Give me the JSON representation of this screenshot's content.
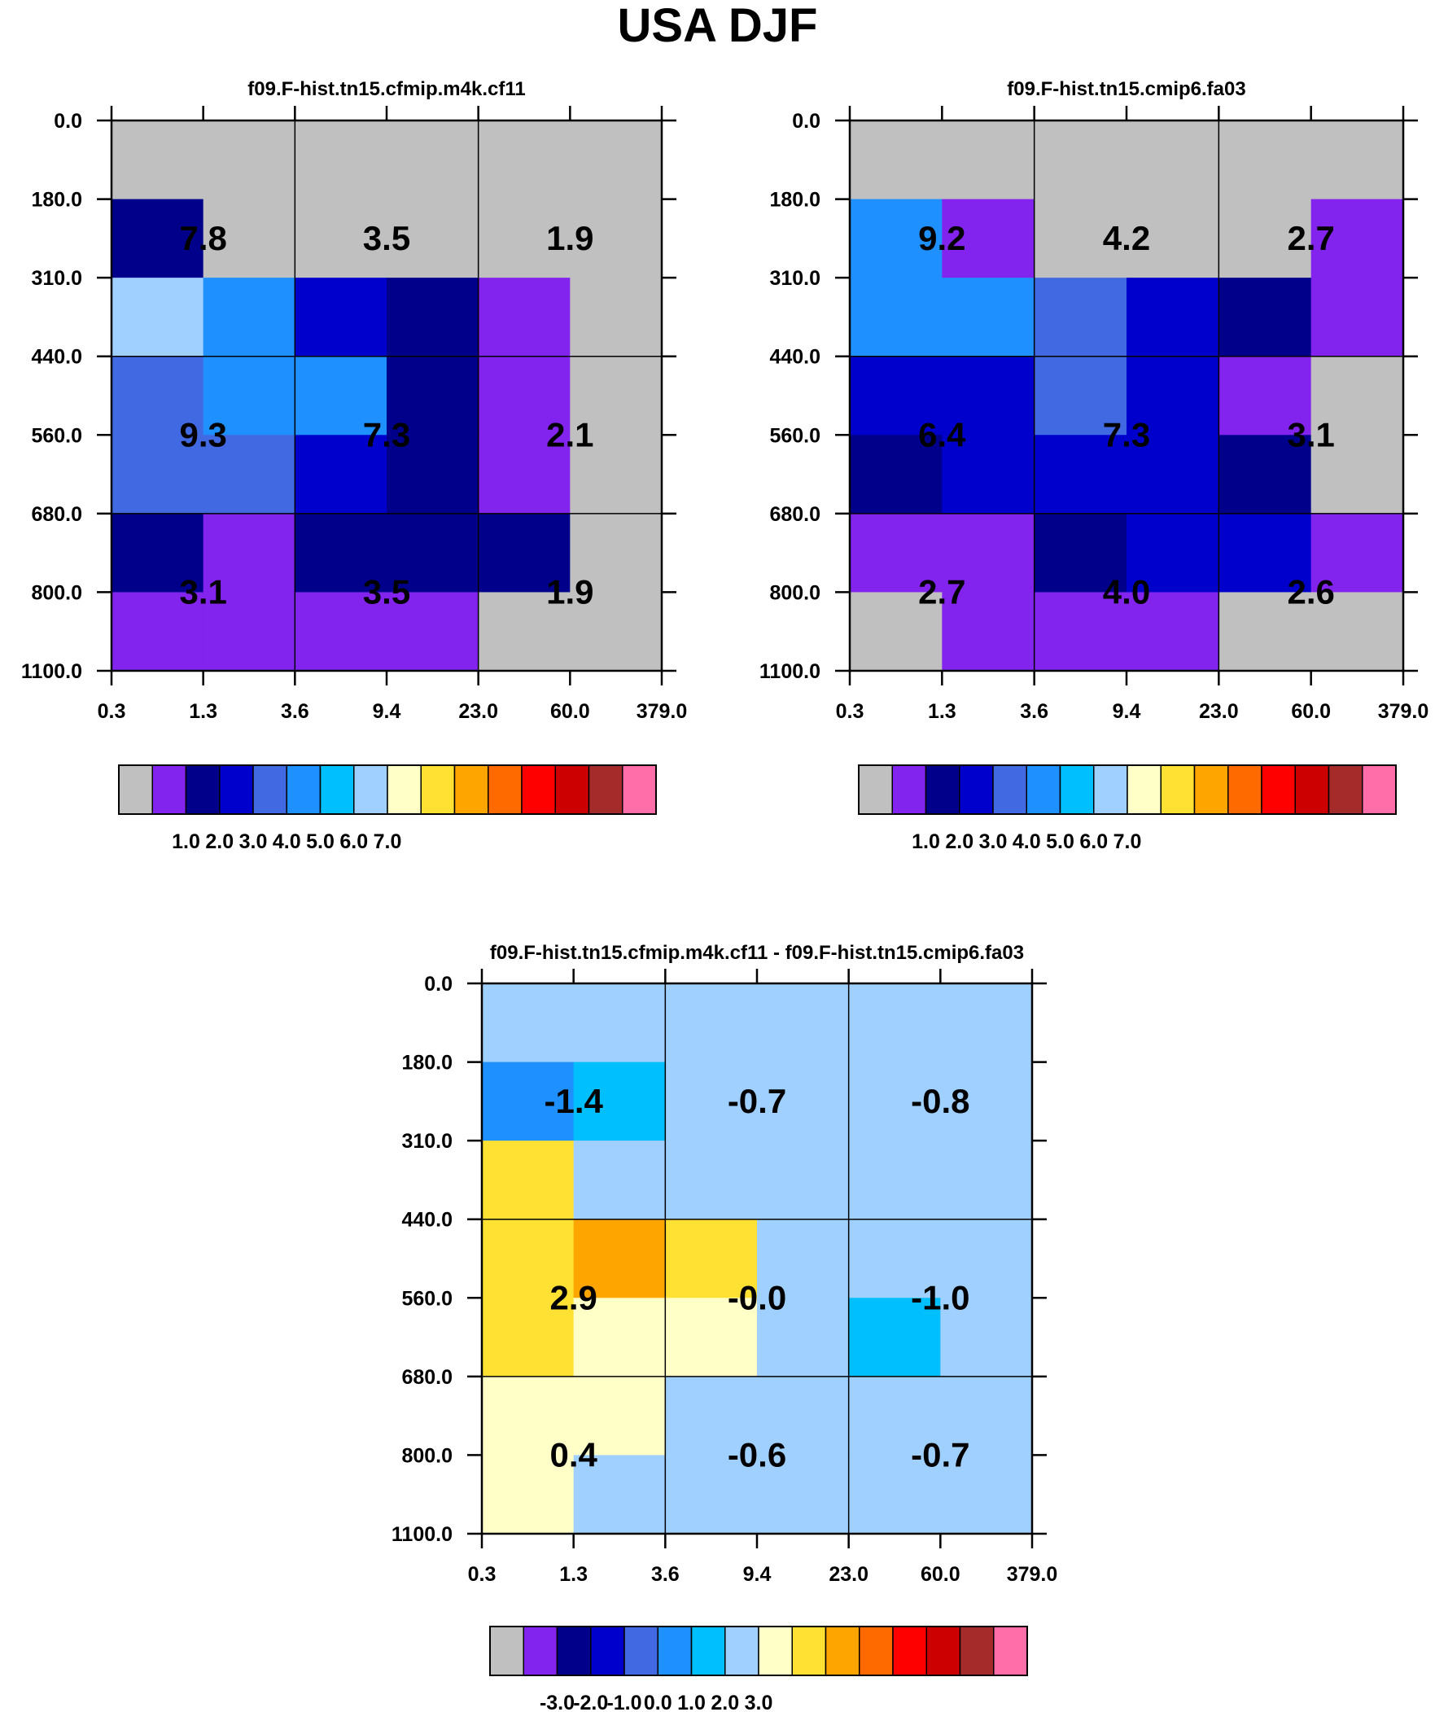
{
  "title": "USA DJF",
  "colors": [
    "#c0c0c0",
    "#8323ee",
    "#00008b",
    "#0000cd",
    "#4169e1",
    "#1e90ff",
    "#00bfff",
    "#a0d0ff",
    "#ffffc8",
    "#ffe133",
    "#ffa500",
    "#ff6a00",
    "#ff0000",
    "#cd0000",
    "#a52a2a",
    "#ff6ea9"
  ],
  "legend_labels_abs": [
    "1.0",
    "2.0",
    "3.0",
    "4.0",
    "5.0",
    "6.0",
    "7.0"
  ],
  "legend_labels_diff": [
    "-3.0",
    "-2.0",
    "-1.0",
    "0.0",
    "1.0",
    "2.0",
    "3.0"
  ],
  "chart_data": [
    {
      "type": "heatmap",
      "title": "f09.F-hist.tn15.cfmip.m4k.cf11",
      "x_ticks": [
        "0.3",
        "1.3",
        "3.6",
        "9.4",
        "23.0",
        "60.0",
        "379.0"
      ],
      "y_ticks": [
        "0.0",
        "180.0",
        "310.0",
        "440.0",
        "560.0",
        "680.0",
        "800.0",
        "1100.0"
      ],
      "cells": [
        [
          0,
          0,
          0,
          0,
          0,
          0
        ],
        [
          2,
          0,
          0,
          0,
          0,
          0
        ],
        [
          7,
          5,
          3,
          2,
          1,
          0
        ],
        [
          4,
          5,
          5,
          2,
          1,
          0
        ],
        [
          4,
          4,
          3,
          2,
          1,
          0
        ],
        [
          2,
          1,
          2,
          2,
          2,
          0
        ],
        [
          1,
          1,
          1,
          1,
          0,
          0
        ]
      ],
      "box_values": [
        [
          "7.8",
          "3.5",
          "1.9"
        ],
        [
          "9.3",
          "7.3",
          "2.1"
        ],
        [
          "3.1",
          "3.5",
          "1.9"
        ]
      ]
    },
    {
      "type": "heatmap",
      "title": "f09.F-hist.tn15.cmip6.fa03",
      "x_ticks": [
        "0.3",
        "1.3",
        "3.6",
        "9.4",
        "23.0",
        "60.0",
        "379.0"
      ],
      "y_ticks": [
        "0.0",
        "180.0",
        "310.0",
        "440.0",
        "560.0",
        "680.0",
        "800.0",
        "1100.0"
      ],
      "cells": [
        [
          0,
          0,
          0,
          0,
          0,
          0
        ],
        [
          5,
          1,
          0,
          0,
          0,
          1
        ],
        [
          5,
          5,
          4,
          3,
          2,
          1
        ],
        [
          3,
          3,
          4,
          3,
          1,
          0
        ],
        [
          2,
          3,
          3,
          3,
          2,
          0
        ],
        [
          1,
          1,
          2,
          3,
          3,
          1
        ],
        [
          0,
          1,
          1,
          1,
          0,
          0
        ]
      ],
      "box_values": [
        [
          "9.2",
          "4.2",
          "2.7"
        ],
        [
          "6.4",
          "7.3",
          "3.1"
        ],
        [
          "2.7",
          "4.0",
          "2.6"
        ]
      ]
    },
    {
      "type": "heatmap",
      "title": "f09.F-hist.tn15.cfmip.m4k.cf11 - f09.F-hist.tn15.cmip6.fa03",
      "x_ticks": [
        "0.3",
        "1.3",
        "3.6",
        "9.4",
        "23.0",
        "60.0",
        "379.0"
      ],
      "y_ticks": [
        "0.0",
        "180.0",
        "310.0",
        "440.0",
        "560.0",
        "680.0",
        "800.0",
        "1100.0"
      ],
      "cells": [
        [
          7,
          7,
          7,
          7,
          7,
          7
        ],
        [
          5,
          6,
          7,
          7,
          7,
          7
        ],
        [
          9,
          7,
          7,
          7,
          7,
          7
        ],
        [
          9,
          10,
          9,
          7,
          7,
          7
        ],
        [
          9,
          8,
          8,
          7,
          6,
          7
        ],
        [
          8,
          8,
          7,
          7,
          7,
          7
        ],
        [
          8,
          7,
          7,
          7,
          7,
          7
        ]
      ],
      "box_values": [
        [
          "-1.4",
          "-0.7",
          "-0.8"
        ],
        [
          "2.9",
          "-0.0",
          "-1.0"
        ],
        [
          "0.4",
          "-0.6",
          "-0.7"
        ]
      ]
    }
  ]
}
